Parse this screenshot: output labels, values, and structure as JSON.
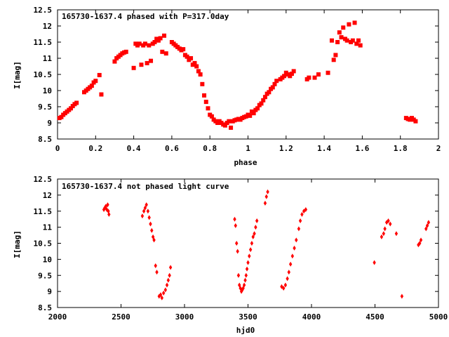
{
  "colors": {
    "points": "#ff0000",
    "axis": "#000000",
    "background": "#ffffff"
  },
  "chart_data": [
    {
      "type": "scatter",
      "title": "165730-1637.4 phased with P=317.0day",
      "xlabel": "phase",
      "ylabel": "I[mag]",
      "xlim": [
        0,
        2
      ],
      "ylim": [
        12.5,
        8.5
      ],
      "y_inverted": true,
      "xticks": [
        "0",
        "0.2",
        "0.4",
        "0.6",
        "0.8",
        "1",
        "1.2",
        "1.4",
        "1.6",
        "1.8",
        "2"
      ],
      "yticks": [
        "8.5",
        "9",
        "9.5",
        "10",
        "10.5",
        "11",
        "11.5",
        "12",
        "12.5"
      ],
      "marker": "square",
      "series": [
        {
          "x": [
            0.01,
            0.02,
            0.03,
            0.04,
            0.05,
            0.06,
            0.07,
            0.08,
            0.09,
            0.1,
            0.14,
            0.15,
            0.16,
            0.17,
            0.18,
            0.19,
            0.2,
            0.22,
            0.23,
            0.3,
            0.31,
            0.32,
            0.33,
            0.34,
            0.35,
            0.36,
            0.4,
            0.41,
            0.42,
            0.43,
            0.44,
            0.45,
            0.46,
            0.47,
            0.48,
            0.49,
            0.5,
            0.51,
            0.52,
            0.53,
            0.54,
            0.55,
            0.56,
            0.57,
            0.6,
            0.61,
            0.62,
            0.63,
            0.64,
            0.65,
            0.66,
            0.67,
            0.68,
            0.69,
            0.7,
            0.71,
            0.72,
            0.73,
            0.74,
            0.75,
            0.76,
            0.77,
            0.78,
            0.79,
            0.8,
            0.81,
            0.82,
            0.83,
            0.84,
            0.85,
            0.86,
            0.87,
            0.88,
            0.89,
            0.9,
            0.91,
            0.92,
            0.93,
            0.94,
            0.95,
            0.96,
            0.97,
            0.98,
            0.99,
            1.0,
            1.01,
            1.02,
            1.03,
            1.04,
            1.05,
            1.06,
            1.07,
            1.08,
            1.09,
            1.1,
            1.11,
            1.12,
            1.13,
            1.14,
            1.15,
            1.17,
            1.18,
            1.19,
            1.2,
            1.21,
            1.22,
            1.23,
            1.24,
            1.31,
            1.32,
            1.35,
            1.37,
            1.42,
            1.44,
            1.45,
            1.46,
            1.47,
            1.48,
            1.49,
            1.5,
            1.51,
            1.52,
            1.53,
            1.54,
            1.55,
            1.56,
            1.57,
            1.58,
            1.59,
            1.83,
            1.84,
            1.85,
            1.86,
            1.87,
            1.88
          ],
          "y": [
            9.15,
            9.18,
            9.25,
            9.3,
            9.35,
            9.4,
            9.45,
            9.52,
            9.58,
            9.62,
            9.95,
            10.0,
            10.05,
            10.1,
            10.15,
            10.25,
            10.3,
            10.48,
            9.88,
            10.9,
            11.0,
            11.05,
            11.1,
            11.15,
            11.18,
            11.2,
            10.7,
            11.45,
            11.4,
            11.45,
            10.8,
            11.4,
            11.45,
            10.85,
            11.4,
            10.92,
            11.45,
            11.5,
            11.6,
            11.55,
            11.62,
            11.2,
            11.7,
            11.15,
            11.5,
            11.45,
            11.4,
            11.35,
            11.3,
            11.25,
            11.28,
            11.1,
            11.05,
            10.95,
            11.0,
            10.8,
            10.85,
            10.75,
            10.6,
            10.5,
            10.2,
            9.85,
            9.65,
            9.45,
            9.25,
            9.2,
            9.1,
            9.05,
            9.0,
            9.05,
            9.0,
            8.95,
            8.92,
            9.0,
            9.05,
            8.85,
            9.05,
            9.08,
            9.1,
            9.12,
            9.1,
            9.15,
            9.18,
            9.2,
            9.25,
            9.22,
            9.35,
            9.3,
            9.4,
            9.45,
            9.55,
            9.6,
            9.7,
            9.8,
            9.9,
            9.95,
            10.05,
            10.1,
            10.2,
            10.3,
            10.35,
            10.4,
            10.45,
            10.55,
            10.5,
            10.45,
            10.52,
            10.6,
            10.35,
            10.4,
            10.4,
            10.5,
            10.55,
            11.55,
            10.95,
            11.1,
            11.5,
            11.8,
            11.65,
            11.95,
            11.6,
            11.55,
            12.05,
            11.5,
            11.55,
            12.1,
            11.45,
            11.55,
            11.4,
            9.15,
            9.12,
            9.1,
            9.15,
            9.1,
            9.05
          ]
        }
      ]
    },
    {
      "type": "scatter",
      "title": "165730-1637.4 not phased light curve",
      "xlabel": "hjd0",
      "ylabel": "I[mag]",
      "xlim": [
        2000,
        5000
      ],
      "ylim": [
        12.5,
        8.5
      ],
      "y_inverted": true,
      "xticks": [
        "2000",
        "2500",
        "3000",
        "3500",
        "4000",
        "4500",
        "5000"
      ],
      "yticks": [
        "8.5",
        "9",
        "9.5",
        "10",
        "10.5",
        "11",
        "11.5",
        "12",
        "12.5"
      ],
      "marker": "diamond",
      "series": [
        {
          "x": [
            2365,
            2372,
            2380,
            2388,
            2395,
            2400,
            2405,
            2668,
            2680,
            2690,
            2700,
            2712,
            2722,
            2732,
            2742,
            2752,
            2760,
            2772,
            2782,
            2800,
            2812,
            2822,
            2835,
            2850,
            2862,
            2872,
            2882,
            2890,
            3395,
            3402,
            3410,
            3418,
            3425,
            3432,
            3440,
            3448,
            3455,
            3462,
            3470,
            3478,
            3485,
            3492,
            3500,
            3510,
            3520,
            3530,
            3540,
            3550,
            3560,
            3570,
            3635,
            3645,
            3655,
            3765,
            3780,
            3795,
            3810,
            3822,
            3835,
            3850,
            3865,
            3880,
            3900,
            3912,
            3925,
            3940,
            3955,
            4495,
            4552,
            4568,
            4578,
            4592,
            4605,
            4620,
            4668,
            4712,
            4842,
            4852,
            4862,
            4902,
            4912,
            4922
          ],
          "y": [
            11.55,
            11.6,
            11.65,
            11.55,
            11.7,
            11.5,
            11.4,
            11.35,
            11.5,
            11.6,
            11.7,
            11.5,
            11.3,
            11.1,
            10.9,
            10.7,
            10.6,
            9.8,
            9.6,
            8.85,
            8.9,
            8.8,
            8.95,
            9.05,
            9.2,
            9.35,
            9.5,
            9.75,
            11.25,
            11.05,
            10.5,
            10.25,
            9.5,
            9.2,
            9.1,
            9.0,
            9.05,
            9.1,
            9.2,
            9.35,
            9.5,
            9.7,
            9.9,
            10.1,
            10.3,
            10.5,
            10.7,
            10.8,
            11.0,
            11.2,
            11.75,
            11.95,
            12.1,
            9.15,
            9.1,
            9.2,
            9.4,
            9.6,
            9.85,
            10.1,
            10.35,
            10.6,
            10.95,
            11.2,
            11.4,
            11.5,
            11.55,
            9.9,
            10.7,
            10.8,
            10.95,
            11.15,
            11.2,
            11.1,
            10.8,
            8.85,
            10.45,
            10.5,
            10.6,
            10.95,
            11.05,
            11.15
          ]
        }
      ]
    }
  ]
}
